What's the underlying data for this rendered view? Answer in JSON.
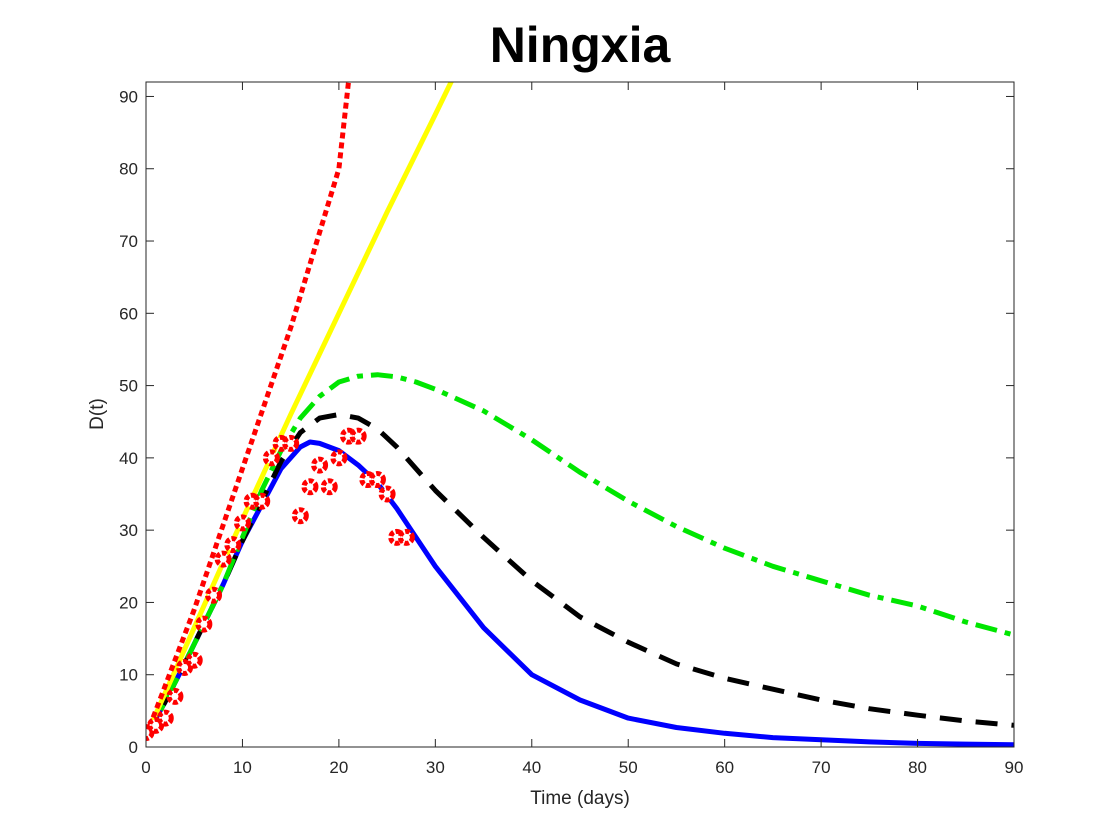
{
  "chart_data": {
    "type": "line",
    "title": "Ningxia",
    "xlabel": "Time (days)",
    "ylabel": "D(t)",
    "xlim": [
      0,
      90
    ],
    "ylim": [
      0,
      92
    ],
    "xticks": [
      0,
      10,
      20,
      30,
      40,
      50,
      60,
      70,
      80,
      90
    ],
    "yticks": [
      0,
      10,
      20,
      30,
      40,
      50,
      60,
      70,
      80,
      90
    ],
    "grid": false,
    "legend": "none",
    "series": [
      {
        "style": "line-solid",
        "color": "#0000ff",
        "x": [
          0,
          2,
          4,
          6,
          8,
          10,
          12,
          14,
          16,
          17,
          18,
          20,
          22,
          24,
          26,
          28,
          30,
          35,
          40,
          45,
          50,
          55,
          60,
          65,
          70,
          75,
          80,
          85,
          90
        ],
        "y": [
          1.5,
          6.3,
          11.5,
          17,
          22.5,
          28.5,
          33.5,
          38.5,
          41.5,
          42.2,
          42,
          41,
          39,
          36.5,
          33,
          29,
          25,
          16.5,
          10,
          6.5,
          4,
          2.7,
          1.9,
          1.3,
          1,
          0.7,
          0.5,
          0.4,
          0.3
        ]
      },
      {
        "style": "line-dashed",
        "color": "#000000",
        "x": [
          0,
          2,
          4,
          6,
          8,
          10,
          12,
          14,
          16,
          18,
          20,
          22,
          24,
          26,
          28,
          30,
          35,
          40,
          45,
          50,
          55,
          60,
          65,
          70,
          75,
          80,
          85,
          90
        ],
        "y": [
          1.5,
          6.3,
          11.5,
          17,
          22.5,
          28.5,
          34,
          39.5,
          43.5,
          45.5,
          46,
          45.5,
          44,
          41.5,
          38.5,
          35.5,
          29,
          23,
          18,
          14.5,
          11.5,
          9.5,
          8,
          6.5,
          5.3,
          4.4,
          3.6,
          3
        ]
      },
      {
        "style": "line-dashdot",
        "color": "#00e600",
        "x": [
          0,
          2,
          4,
          6,
          8,
          10,
          12,
          14,
          16,
          18,
          20,
          22,
          24,
          26,
          28,
          30,
          35,
          40,
          45,
          50,
          55,
          60,
          65,
          70,
          75,
          80,
          85,
          90
        ],
        "y": [
          1.5,
          6.3,
          11.5,
          17,
          22.5,
          29,
          35.5,
          41,
          45.5,
          48.5,
          50.5,
          51.3,
          51.5,
          51.2,
          50.5,
          49.5,
          46.5,
          42.5,
          38,
          34,
          30.5,
          27.5,
          25,
          23,
          21,
          19.5,
          17.3,
          15.5
        ]
      },
      {
        "style": "line-solid",
        "color": "#ffff00",
        "x": [
          0,
          5,
          10,
          15,
          20,
          25,
          30,
          32
        ],
        "y": [
          1.5,
          16.5,
          31.5,
          46,
          60,
          74,
          87.5,
          93
        ]
      },
      {
        "style": "line-dotted",
        "color": "#ff0000",
        "x": [
          0,
          5,
          10,
          15,
          20,
          21
        ],
        "y": [
          1.5,
          19,
          38.5,
          58,
          80,
          92
        ]
      },
      {
        "style": "markers",
        "color": "#ff0000",
        "x": [
          0,
          1,
          2,
          3,
          4,
          5,
          6,
          7,
          8,
          9,
          10,
          11,
          12,
          13,
          14,
          15,
          16,
          17,
          18,
          19,
          20,
          21,
          22,
          23,
          24,
          25,
          26,
          27
        ],
        "y": [
          2,
          3,
          4,
          7,
          11,
          12,
          17,
          21,
          26,
          28,
          31,
          34,
          34,
          40,
          42,
          42,
          32,
          36,
          39,
          36,
          40,
          43,
          43,
          37,
          37,
          35,
          29,
          29
        ]
      }
    ]
  }
}
